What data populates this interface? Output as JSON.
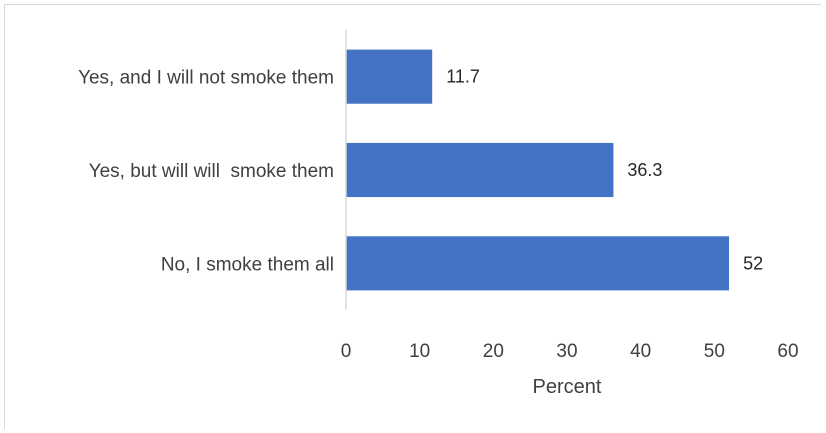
{
  "chart_data": {
    "type": "bar",
    "orientation": "horizontal",
    "categories": [
      "Yes, and I will not smoke them",
      "Yes, but will will  smoke them",
      "No, I smoke them all"
    ],
    "values": [
      11.7,
      36.3,
      52
    ],
    "value_labels": [
      "11.7",
      "36.3",
      "52"
    ],
    "xlabel": "Percent",
    "ylabel": "",
    "xlim": [
      0,
      60
    ],
    "xticks": [
      0,
      10,
      20,
      30,
      40,
      50,
      60
    ],
    "grid": false,
    "legend": "none",
    "bar_color": "#4472c4"
  }
}
